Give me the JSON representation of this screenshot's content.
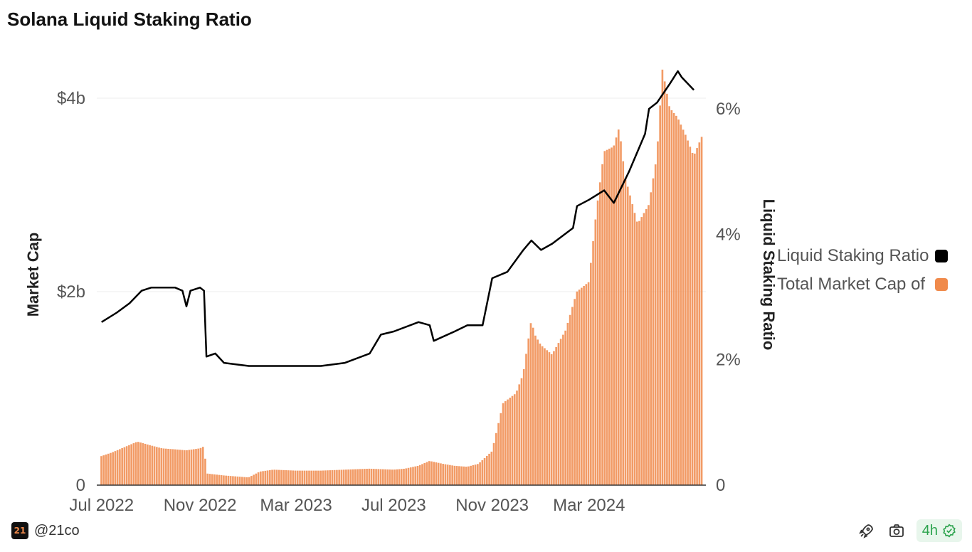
{
  "title": "Solana Liquid Staking Ratio",
  "footer": {
    "handle": "@21co",
    "logo_text": "21",
    "refresh": "4h"
  },
  "icons": {
    "logo": "21co-logo-icon",
    "shortcut": "rocket-icon",
    "camera": "camera-icon",
    "check": "check-badge-icon"
  },
  "legend": [
    {
      "label": "Liquid Staking Ratio",
      "color": "#000000"
    },
    {
      "label": "Total Market Cap of",
      "color": "#f08a4b"
    }
  ],
  "chart_data": {
    "type": "bar+line",
    "title": "Solana Liquid Staking Ratio",
    "xlabel": "",
    "ylabel_left": "Market Cap",
    "ylabel_right": "Liquid Staking Ratio",
    "x_ticks": [
      "Jul 2022",
      "Nov 2022",
      "Mar 2023",
      "Jul 2023",
      "Nov 2023",
      "Mar 2024"
    ],
    "y_left_ticks": [
      "0",
      "$2b",
      "$4b"
    ],
    "y_left_range": [
      0,
      4000000000
    ],
    "y_right_ticks": [
      "0",
      "2%",
      "4%",
      "6%"
    ],
    "y_right_range": [
      0,
      6
    ],
    "grid": true,
    "legend_position": "right",
    "series": [
      {
        "name": "Total Market Cap of",
        "kind": "bar",
        "color": "#f08a4b",
        "points": [
          [
            "2022-07-01",
            0.3
          ],
          [
            "2022-07-15",
            0.34
          ],
          [
            "2022-08-01",
            0.4
          ],
          [
            "2022-08-15",
            0.45
          ],
          [
            "2022-09-01",
            0.41
          ],
          [
            "2022-09-15",
            0.38
          ],
          [
            "2022-10-01",
            0.37
          ],
          [
            "2022-10-15",
            0.36
          ],
          [
            "2022-11-01",
            0.38
          ],
          [
            "2022-11-06",
            0.4
          ],
          [
            "2022-11-10",
            0.12
          ],
          [
            "2022-12-01",
            0.1
          ],
          [
            "2023-01-01",
            0.08
          ],
          [
            "2023-01-15",
            0.14
          ],
          [
            "2023-02-01",
            0.16
          ],
          [
            "2023-03-01",
            0.15
          ],
          [
            "2023-04-01",
            0.15
          ],
          [
            "2023-05-01",
            0.16
          ],
          [
            "2023-06-01",
            0.17
          ],
          [
            "2023-07-01",
            0.16
          ],
          [
            "2023-07-15",
            0.17
          ],
          [
            "2023-08-01",
            0.2
          ],
          [
            "2023-08-15",
            0.25
          ],
          [
            "2023-09-01",
            0.22
          ],
          [
            "2023-09-15",
            0.2
          ],
          [
            "2023-10-01",
            0.19
          ],
          [
            "2023-10-15",
            0.22
          ],
          [
            "2023-11-01",
            0.35
          ],
          [
            "2023-11-15",
            0.85
          ],
          [
            "2023-12-01",
            0.95
          ],
          [
            "2023-12-10",
            1.15
          ],
          [
            "2023-12-20",
            1.7
          ],
          [
            "2023-12-25",
            1.55
          ],
          [
            "2024-01-01",
            1.45
          ],
          [
            "2024-01-15",
            1.35
          ],
          [
            "2024-02-01",
            1.6
          ],
          [
            "2024-02-15",
            2.0
          ],
          [
            "2024-03-01",
            2.1
          ],
          [
            "2024-03-10",
            2.8
          ],
          [
            "2024-03-20",
            3.45
          ],
          [
            "2024-04-01",
            3.5
          ],
          [
            "2024-04-08",
            3.7
          ],
          [
            "2024-04-15",
            3.2
          ],
          [
            "2024-05-01",
            2.7
          ],
          [
            "2024-05-15",
            2.9
          ],
          [
            "2024-05-25",
            3.4
          ],
          [
            "2024-06-01",
            4.3
          ],
          [
            "2024-06-10",
            3.9
          ],
          [
            "2024-06-20",
            3.8
          ],
          [
            "2024-07-01",
            3.6
          ],
          [
            "2024-07-10",
            3.4
          ],
          [
            "2024-07-20",
            3.6
          ]
        ]
      },
      {
        "name": "Liquid Staking Ratio",
        "kind": "line",
        "color": "#000000",
        "points": [
          [
            "2022-07-01",
            2.6
          ],
          [
            "2022-07-20",
            2.75
          ],
          [
            "2022-08-05",
            2.9
          ],
          [
            "2022-08-20",
            3.1
          ],
          [
            "2022-09-01",
            3.15
          ],
          [
            "2022-10-01",
            3.15
          ],
          [
            "2022-10-10",
            3.1
          ],
          [
            "2022-10-15",
            2.85
          ],
          [
            "2022-10-20",
            3.1
          ],
          [
            "2022-11-01",
            3.15
          ],
          [
            "2022-11-06",
            3.1
          ],
          [
            "2022-11-09",
            2.05
          ],
          [
            "2022-11-20",
            2.1
          ],
          [
            "2022-12-01",
            1.95
          ],
          [
            "2023-01-01",
            1.9
          ],
          [
            "2023-02-01",
            1.9
          ],
          [
            "2023-03-01",
            1.9
          ],
          [
            "2023-04-01",
            1.9
          ],
          [
            "2023-05-01",
            1.95
          ],
          [
            "2023-06-01",
            2.1
          ],
          [
            "2023-06-15",
            2.4
          ],
          [
            "2023-07-01",
            2.45
          ],
          [
            "2023-08-01",
            2.6
          ],
          [
            "2023-08-15",
            2.55
          ],
          [
            "2023-08-20",
            2.3
          ],
          [
            "2023-09-15",
            2.45
          ],
          [
            "2023-10-01",
            2.55
          ],
          [
            "2023-10-15",
            2.55
          ],
          [
            "2023-10-20",
            2.55
          ],
          [
            "2023-11-01",
            3.3
          ],
          [
            "2023-11-20",
            3.4
          ],
          [
            "2023-12-10",
            3.75
          ],
          [
            "2023-12-20",
            3.9
          ],
          [
            "2024-01-01",
            3.75
          ],
          [
            "2024-01-15",
            3.85
          ],
          [
            "2024-02-10",
            4.1
          ],
          [
            "2024-02-15",
            4.45
          ],
          [
            "2024-03-01",
            4.55
          ],
          [
            "2024-03-20",
            4.7
          ],
          [
            "2024-04-01",
            4.5
          ],
          [
            "2024-04-20",
            5.0
          ],
          [
            "2024-05-10",
            5.6
          ],
          [
            "2024-05-15",
            6.0
          ],
          [
            "2024-05-25",
            6.1
          ],
          [
            "2024-06-10",
            6.4
          ],
          [
            "2024-06-20",
            6.6
          ],
          [
            "2024-06-25",
            6.5
          ],
          [
            "2024-07-10",
            6.3
          ]
        ]
      }
    ]
  }
}
